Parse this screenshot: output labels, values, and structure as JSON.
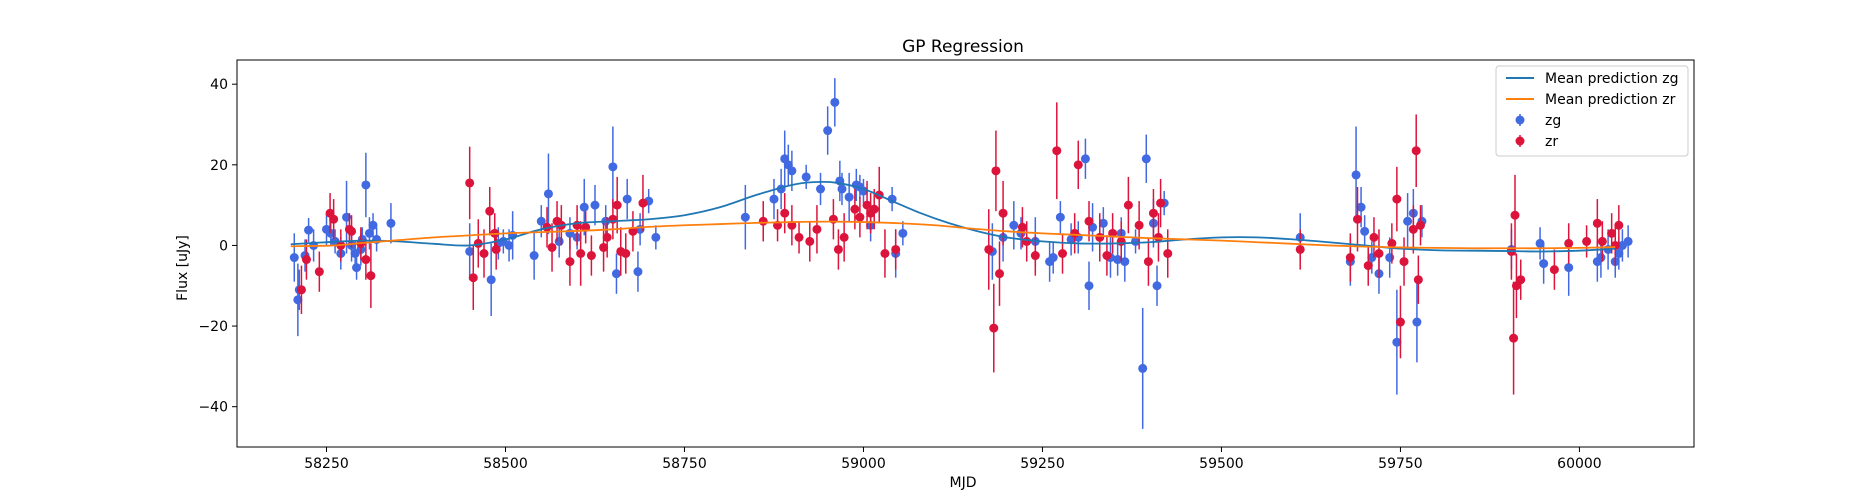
{
  "chart_data": {
    "type": "scatter",
    "title": "GP Regression",
    "xlabel": "MJD",
    "ylabel": "Flux [uJy]",
    "xlim": [
      58125,
      60160
    ],
    "ylim": [
      -50,
      46
    ],
    "xticks": [
      58250,
      58500,
      58750,
      59000,
      59250,
      59500,
      59750,
      60000
    ],
    "yticks": [
      -40,
      -20,
      0,
      20,
      40
    ],
    "grid": false,
    "legend_position": "top-right",
    "colors": {
      "zg": "#4169E1",
      "zr": "#DC143C",
      "mean_zg": "#1f77b4",
      "mean_zr": "#ff7f0e"
    },
    "mean_prediction": [
      {
        "name": "Mean prediction zg",
        "color": "#1f77b4",
        "x": [
          58200,
          58260,
          58300,
          58350,
          58400,
          58450,
          58500,
          58550,
          58600,
          58650,
          58700,
          58750,
          58800,
          58850,
          58900,
          58930,
          58960,
          59000,
          59040,
          59080,
          59120,
          59160,
          59200,
          59250,
          59300,
          59350,
          59400,
          59450,
          59500,
          59550,
          59600,
          59650,
          59700,
          59750,
          59800,
          59850,
          59900,
          59950,
          60000,
          60050
        ],
        "y": [
          0.3,
          0.9,
          1.2,
          1.0,
          0.4,
          0.0,
          1.5,
          4.0,
          5.5,
          6.0,
          6.5,
          7.5,
          9.5,
          12.5,
          15.0,
          15.7,
          15.6,
          14.0,
          11.0,
          8.0,
          5.5,
          3.5,
          2.0,
          1.0,
          0.5,
          0.5,
          0.8,
          1.5,
          2.0,
          2.0,
          1.5,
          0.8,
          0.0,
          -0.8,
          -1.2,
          -1.3,
          -1.4,
          -1.5,
          -1.3,
          -0.8
        ]
      },
      {
        "name": "Mean prediction zr",
        "color": "#ff7f0e",
        "x": [
          58200,
          58260,
          58300,
          58350,
          58400,
          58450,
          58500,
          58550,
          58600,
          58650,
          58700,
          58750,
          58800,
          58850,
          58900,
          58950,
          59000,
          59050,
          59100,
          59150,
          59200,
          59250,
          59300,
          59350,
          59400,
          59450,
          59500,
          59550,
          59600,
          59650,
          59700,
          59750,
          59800,
          59850,
          59900,
          59950,
          60000,
          60050
        ],
        "y": [
          -0.2,
          0.0,
          0.6,
          1.3,
          2.0,
          2.5,
          3.0,
          3.3,
          3.6,
          4.0,
          4.6,
          5.0,
          5.3,
          5.6,
          5.8,
          5.9,
          5.8,
          5.5,
          5.0,
          4.2,
          3.5,
          3.0,
          2.6,
          2.2,
          1.8,
          1.5,
          1.2,
          0.8,
          0.4,
          0.0,
          -0.3,
          -0.5,
          -0.6,
          -0.7,
          -0.7,
          -0.7,
          -0.6,
          -0.4
        ]
      }
    ],
    "series": [
      {
        "name": "zg",
        "color": "#4169E1",
        "points": [
          [
            58205,
            -3,
            6
          ],
          [
            58210,
            -13.5,
            9
          ],
          [
            58212,
            -11,
            5
          ],
          [
            58220,
            -2.5,
            4
          ],
          [
            58225,
            3.8,
            3
          ],
          [
            58232,
            0,
            4
          ],
          [
            58250,
            4,
            4
          ],
          [
            58256,
            3,
            3
          ],
          [
            58262,
            1,
            3
          ],
          [
            58270,
            -2,
            4
          ],
          [
            58278,
            7,
            9
          ],
          [
            58285,
            0,
            4
          ],
          [
            58290,
            -2,
            3
          ],
          [
            58292,
            -5.5,
            3
          ],
          [
            58298,
            -1,
            4
          ],
          [
            58300,
            1.5,
            3
          ],
          [
            58305,
            15,
            8
          ],
          [
            58310,
            3,
            4
          ],
          [
            58315,
            5,
            3
          ],
          [
            58320,
            1.5,
            3
          ],
          [
            58340,
            5.5,
            5
          ],
          [
            58450,
            -1.5,
            7
          ],
          [
            58480,
            -8.5,
            9
          ],
          [
            58490,
            0.5,
            4
          ],
          [
            58497,
            1,
            3
          ],
          [
            58505,
            0,
            4
          ],
          [
            58510,
            2.5,
            6
          ],
          [
            58540,
            -2.5,
            6
          ],
          [
            58550,
            6,
            4
          ],
          [
            58560,
            12.8,
            10
          ],
          [
            58575,
            1,
            4
          ],
          [
            58590,
            3,
            4
          ],
          [
            58600,
            2,
            3
          ],
          [
            58610,
            9.5,
            7
          ],
          [
            58625,
            10,
            5
          ],
          [
            58640,
            6,
            4
          ],
          [
            58650,
            19.5,
            10
          ],
          [
            58655,
            -7,
            5
          ],
          [
            58670,
            11.5,
            5
          ],
          [
            58685,
            -6.5,
            5
          ],
          [
            58688,
            4,
            4
          ],
          [
            58700,
            11,
            3
          ],
          [
            58710,
            2,
            3
          ],
          [
            58835,
            7,
            8
          ],
          [
            58875,
            11.5,
            5
          ],
          [
            58885,
            14,
            5
          ],
          [
            58890,
            21.5,
            7
          ],
          [
            58895,
            20,
            5
          ],
          [
            58900,
            18.5,
            5
          ],
          [
            58920,
            17,
            3
          ],
          [
            58940,
            14,
            4
          ],
          [
            58950,
            28.5,
            6
          ],
          [
            58960,
            35.5,
            6
          ],
          [
            58967,
            16,
            5
          ],
          [
            58970,
            14,
            4
          ],
          [
            58980,
            12,
            6
          ],
          [
            58990,
            15,
            4
          ],
          [
            58995,
            14.5,
            3
          ],
          [
            59000,
            13.5,
            3
          ],
          [
            59010,
            5,
            4
          ],
          [
            59040,
            11.5,
            3
          ],
          [
            59045,
            -2,
            6
          ],
          [
            59055,
            3,
            3
          ],
          [
            59180,
            -1.5,
            7
          ],
          [
            59195,
            2,
            6
          ],
          [
            59210,
            5,
            6
          ],
          [
            59220,
            3,
            4
          ],
          [
            59240,
            1,
            6
          ],
          [
            59260,
            -4,
            5
          ],
          [
            59265,
            -3,
            4
          ],
          [
            59275,
            7,
            4
          ],
          [
            59290,
            1.5,
            4
          ],
          [
            59300,
            2,
            4
          ],
          [
            59310,
            21.5,
            5
          ],
          [
            59315,
            -10,
            6
          ],
          [
            59320,
            4.5,
            6
          ],
          [
            59335,
            5.5,
            4
          ],
          [
            59345,
            -3,
            5
          ],
          [
            59355,
            -3.5,
            4
          ],
          [
            59360,
            3,
            4
          ],
          [
            59365,
            -4,
            5
          ],
          [
            59380,
            1,
            3
          ],
          [
            59390,
            -30.5,
            15
          ],
          [
            59395,
            21.5,
            6
          ],
          [
            59405,
            5.5,
            6
          ],
          [
            59410,
            -10,
            5
          ],
          [
            59420,
            10.5,
            3
          ],
          [
            59610,
            2,
            6
          ],
          [
            59680,
            -4,
            6
          ],
          [
            59688,
            17.5,
            12
          ],
          [
            59695,
            9.5,
            5
          ],
          [
            59700,
            3.5,
            4
          ],
          [
            59710,
            -3,
            4
          ],
          [
            59720,
            -7,
            5
          ],
          [
            59735,
            -3,
            5
          ],
          [
            59745,
            -24,
            13
          ],
          [
            59760,
            6,
            7
          ],
          [
            59768,
            8,
            6
          ],
          [
            59773,
            -19,
            10
          ],
          [
            59780,
            6,
            4
          ],
          [
            59905,
            -1,
            5
          ],
          [
            59945,
            0.5,
            4
          ],
          [
            59950,
            -4.5,
            5
          ],
          [
            59985,
            -5.5,
            7
          ],
          [
            60025,
            -4,
            5
          ],
          [
            60030,
            -3,
            5
          ],
          [
            60040,
            -1,
            5
          ],
          [
            60050,
            -4,
            4
          ],
          [
            60055,
            -2,
            4
          ],
          [
            60060,
            0,
            4
          ],
          [
            60068,
            1,
            4
          ]
        ]
      },
      {
        "name": "zr",
        "color": "#DC143C",
        "points": [
          [
            58215,
            -11,
            6
          ],
          [
            58222,
            -3.5,
            5
          ],
          [
            58240,
            -6.5,
            5
          ],
          [
            58255,
            8,
            5
          ],
          [
            58260,
            6.5,
            5
          ],
          [
            58270,
            0,
            4
          ],
          [
            58282,
            4,
            4
          ],
          [
            58285,
            3.5,
            4
          ],
          [
            58298,
            0.5,
            4
          ],
          [
            58305,
            -3.5,
            5
          ],
          [
            58312,
            -7.5,
            8
          ],
          [
            58450,
            15.5,
            9
          ],
          [
            58455,
            -8,
            8
          ],
          [
            58462,
            0.5,
            6
          ],
          [
            58470,
            -2,
            6
          ],
          [
            58478,
            8.5,
            6
          ],
          [
            58485,
            3,
            5
          ],
          [
            58487,
            -1,
            5
          ],
          [
            58558,
            4.5,
            5
          ],
          [
            58565,
            -0.5,
            6
          ],
          [
            58572,
            6,
            5
          ],
          [
            58578,
            5,
            5
          ],
          [
            58590,
            -4,
            6
          ],
          [
            58600,
            5,
            5
          ],
          [
            58605,
            -2,
            8
          ],
          [
            58612,
            4.5,
            4
          ],
          [
            58620,
            -2.5,
            5
          ],
          [
            58637,
            -0.5,
            6
          ],
          [
            58642,
            2,
            5
          ],
          [
            58650,
            6.5,
            5
          ],
          [
            58656,
            10,
            7
          ],
          [
            58661,
            -1.5,
            6
          ],
          [
            58668,
            -2,
            5
          ],
          [
            58678,
            3.5,
            5
          ],
          [
            58692,
            10.5,
            7
          ],
          [
            58860,
            6,
            5
          ],
          [
            58880,
            5,
            4
          ],
          [
            58890,
            8,
            5
          ],
          [
            58900,
            5,
            5
          ],
          [
            58910,
            2,
            4
          ],
          [
            58925,
            1,
            5
          ],
          [
            58935,
            4,
            6
          ],
          [
            58958,
            6.5,
            5
          ],
          [
            58965,
            -1,
            5
          ],
          [
            58973,
            2,
            6
          ],
          [
            58988,
            9,
            5
          ],
          [
            58995,
            7,
            5
          ],
          [
            59005,
            10,
            6
          ],
          [
            59010,
            8,
            5
          ],
          [
            59015,
            9,
            5
          ],
          [
            59022,
            12.5,
            7
          ],
          [
            59030,
            -2,
            6
          ],
          [
            59045,
            -1,
            5
          ],
          [
            59175,
            -1,
            10
          ],
          [
            59182,
            -20.5,
            11
          ],
          [
            59185,
            18.5,
            10
          ],
          [
            59190,
            -7,
            8
          ],
          [
            59195,
            8,
            8
          ],
          [
            59222,
            4.5,
            5
          ],
          [
            59228,
            1,
            5
          ],
          [
            59240,
            -2.5,
            5
          ],
          [
            59270,
            23.5,
            12
          ],
          [
            59278,
            -2,
            5
          ],
          [
            59295,
            3,
            5
          ],
          [
            59300,
            20,
            6
          ],
          [
            59315,
            6,
            5
          ],
          [
            59330,
            2,
            6
          ],
          [
            59340,
            -2.5,
            5
          ],
          [
            59348,
            3,
            5
          ],
          [
            59360,
            1,
            5
          ],
          [
            59370,
            10,
            7
          ],
          [
            59385,
            5,
            6
          ],
          [
            59398,
            -4,
            6
          ],
          [
            59405,
            8,
            6
          ],
          [
            59412,
            2,
            6
          ],
          [
            59415,
            10.5,
            6
          ],
          [
            59425,
            -2,
            6
          ],
          [
            59610,
            -1,
            5
          ],
          [
            59680,
            -3,
            6
          ],
          [
            59690,
            6.5,
            8
          ],
          [
            59705,
            -5,
            5
          ],
          [
            59713,
            2,
            5
          ],
          [
            59720,
            -2,
            6
          ],
          [
            59738,
            0.5,
            5
          ],
          [
            59745,
            11.5,
            8
          ],
          [
            59750,
            -19,
            9
          ],
          [
            59755,
            -4,
            6
          ],
          [
            59768,
            4,
            6
          ],
          [
            59772,
            23.5,
            9
          ],
          [
            59775,
            -8.5,
            6
          ],
          [
            59778,
            5,
            5
          ],
          [
            59905,
            -1.5,
            7
          ],
          [
            59908,
            -23,
            14
          ],
          [
            59910,
            7.5,
            10
          ],
          [
            59912,
            -10,
            8
          ],
          [
            59918,
            -8.5,
            5
          ],
          [
            59965,
            -6,
            5
          ],
          [
            59985,
            0.5,
            5
          ],
          [
            60010,
            1,
            4
          ],
          [
            60025,
            5.5,
            6
          ],
          [
            60032,
            1,
            5
          ],
          [
            60045,
            3,
            5
          ],
          [
            60050,
            0,
            5
          ],
          [
            60055,
            5,
            5
          ]
        ]
      }
    ]
  }
}
